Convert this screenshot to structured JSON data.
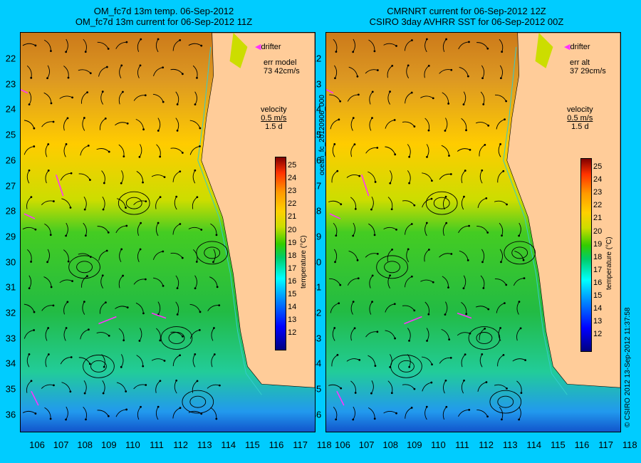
{
  "left_panel": {
    "title_line1": "OM_fc7d 13m temp. 06-Sep-2012",
    "title_line2": "OM_fc7d 13m current for 06-Sep-2012 11Z",
    "drifter_label": "drifter",
    "err_label": "err model",
    "err_value": "73 42cm/s",
    "velocity_label": "velocity",
    "velocity_scale": "0.5 m/s",
    "velocity_time": "1.5 d",
    "colorbar_ticks": [
      "25",
      "24",
      "23",
      "22",
      "21",
      "20",
      "19",
      "18",
      "17",
      "16",
      "15",
      "14",
      "13",
      "12"
    ],
    "colorbar_unit": "temperature (°C)"
  },
  "right_panel": {
    "title_line1": "CMRNRT current for 06-Sep-2012 12Z",
    "title_line2": "CSIRO 3day AVHRR SST for 06-Sep-2012 00Z",
    "drifter_label": "drifter",
    "err_label": "err alt",
    "err_value": "37 29cm/s",
    "velocity_label": "velocity",
    "velocity_scale": "0.5 m/s",
    "velocity_time": "1.5 d",
    "colorbar_ticks": [
      "25",
      "24",
      "23",
      "22",
      "21",
      "20",
      "19",
      "18",
      "17",
      "16",
      "15",
      "14",
      "13",
      "12"
    ],
    "colorbar_unit": "temperature (°C)"
  },
  "center_label": "ocean_fc_20120906_000",
  "right_label": "© CSIRO 2012   13-Sep-2012 11:37:58",
  "lat_labels": [
    "22",
    "23",
    "24",
    "25",
    "26",
    "27",
    "28",
    "29",
    "30",
    "31",
    "32",
    "33",
    "34",
    "35",
    "36"
  ],
  "lon_labels": [
    "106",
    "107",
    "108",
    "109",
    "110",
    "111",
    "112",
    "113",
    "114",
    "115",
    "116",
    "117",
    "118"
  ],
  "colors": {
    "background": "#00ccff",
    "land": "#ffcc99",
    "drifter": "#ff33ff"
  }
}
